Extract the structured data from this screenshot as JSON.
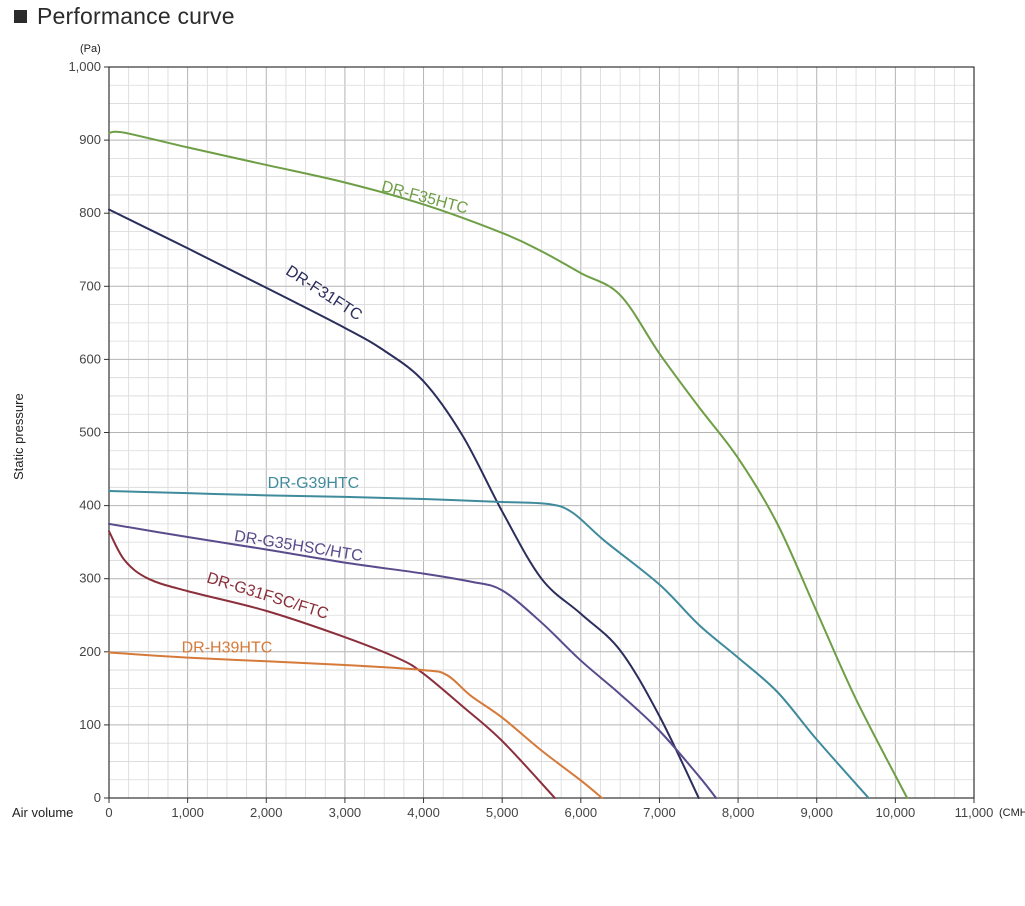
{
  "page": {
    "title": "Performance curve"
  },
  "chart_data": {
    "type": "line",
    "title": "Performance curve",
    "xlabel": "Air volume",
    "xunit": "(CMH)",
    "ylabel": "Static pressure",
    "yunit": "(Pa)",
    "xlim": [
      0,
      11000
    ],
    "ylim": [
      0,
      1000
    ],
    "x_ticks": [
      0,
      1000,
      2000,
      3000,
      4000,
      5000,
      6000,
      7000,
      8000,
      9000,
      10000,
      11000
    ],
    "x_tick_labels": [
      "0",
      "1,000",
      "2,000",
      "3,000",
      "4,000",
      "5,000",
      "6,000",
      "7,000",
      "8,000",
      "9,000",
      "10,000",
      "11,000"
    ],
    "y_ticks": [
      0,
      100,
      200,
      300,
      400,
      500,
      600,
      700,
      800,
      900,
      1000
    ],
    "y_tick_labels": [
      "0",
      "100",
      "200",
      "300",
      "400",
      "500",
      "600",
      "700",
      "800",
      "900",
      "1,000"
    ],
    "grid": true,
    "legend": "none (inline curve labels)",
    "series": [
      {
        "name": "DR-F35HTC",
        "color": "#6e9e45",
        "points": [
          [
            0,
            910
          ],
          [
            200,
            910
          ],
          [
            1000,
            890
          ],
          [
            2000,
            866
          ],
          [
            3000,
            842
          ],
          [
            4000,
            812
          ],
          [
            5000,
            773
          ],
          [
            5500,
            748
          ],
          [
            6000,
            718
          ],
          [
            6500,
            688
          ],
          [
            7000,
            608
          ],
          [
            7500,
            535
          ],
          [
            8000,
            465
          ],
          [
            8500,
            375
          ],
          [
            9000,
            255
          ],
          [
            9500,
            135
          ],
          [
            10150,
            0
          ]
        ],
        "label_at": [
          4000,
          815
        ],
        "label_angle": 15
      },
      {
        "name": "DR-F31FTC",
        "color": "#2b2d5c",
        "points": [
          [
            0,
            805
          ],
          [
            1000,
            752
          ],
          [
            2000,
            698
          ],
          [
            3000,
            643
          ],
          [
            3500,
            612
          ],
          [
            4000,
            570
          ],
          [
            4500,
            495
          ],
          [
            5000,
            392
          ],
          [
            5500,
            300
          ],
          [
            6000,
            252
          ],
          [
            6500,
            202
          ],
          [
            7000,
            112
          ],
          [
            7500,
            0
          ]
        ],
        "label_at": [
          2700,
          685
        ],
        "label_angle": 33
      },
      {
        "name": "DR-G39HTC",
        "color": "#3f8b9c",
        "points": [
          [
            0,
            420
          ],
          [
            1000,
            417
          ],
          [
            2000,
            414
          ],
          [
            3000,
            412
          ],
          [
            4000,
            409
          ],
          [
            5000,
            405
          ],
          [
            5600,
            402
          ],
          [
            5900,
            390
          ],
          [
            6300,
            352
          ],
          [
            7000,
            292
          ],
          [
            7500,
            237
          ],
          [
            8000,
            192
          ],
          [
            8500,
            145
          ],
          [
            9000,
            80
          ],
          [
            9660,
            0
          ]
        ],
        "label_at": [
          2600,
          424
        ],
        "label_angle": 0
      },
      {
        "name": "DR-G35HSC/HTC",
        "color": "#5a4b8c",
        "points": [
          [
            0,
            375
          ],
          [
            1000,
            357
          ],
          [
            2000,
            340
          ],
          [
            3000,
            322
          ],
          [
            4000,
            307
          ],
          [
            4600,
            296
          ],
          [
            5000,
            284
          ],
          [
            5500,
            240
          ],
          [
            6000,
            188
          ],
          [
            6500,
            142
          ],
          [
            7000,
            92
          ],
          [
            7500,
            30
          ],
          [
            7720,
            0
          ]
        ],
        "label_at": [
          2400,
          338
        ],
        "label_angle": 9
      },
      {
        "name": "DR-G31FSC/FTC",
        "color": "#8b2f3b",
        "points": [
          [
            0,
            365
          ],
          [
            200,
            325
          ],
          [
            500,
            300
          ],
          [
            1000,
            283
          ],
          [
            2000,
            256
          ],
          [
            3000,
            220
          ],
          [
            3700,
            190
          ],
          [
            4000,
            170
          ],
          [
            4500,
            125
          ],
          [
            5000,
            78
          ],
          [
            5670,
            0
          ]
        ],
        "label_at": [
          2000,
          270
        ],
        "label_angle": 17
      },
      {
        "name": "DR-H39HTC",
        "color": "#d57a3a",
        "points": [
          [
            0,
            199
          ],
          [
            1000,
            192
          ],
          [
            2000,
            187
          ],
          [
            3000,
            182
          ],
          [
            4000,
            175
          ],
          [
            4300,
            168
          ],
          [
            4600,
            140
          ],
          [
            5000,
            110
          ],
          [
            5500,
            65
          ],
          [
            6000,
            24
          ],
          [
            6270,
            0
          ]
        ],
        "label_at": [
          1500,
          199
        ],
        "label_angle": 0
      }
    ]
  }
}
